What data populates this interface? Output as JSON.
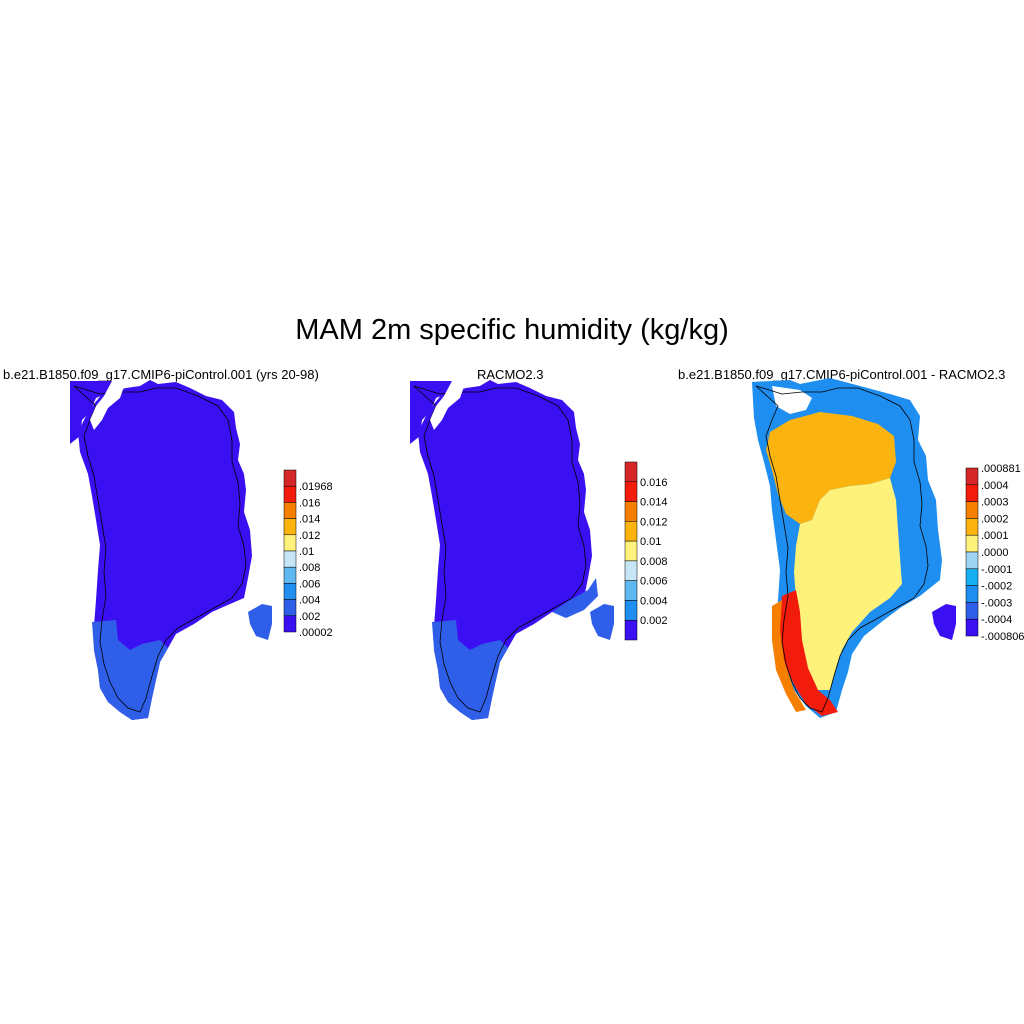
{
  "title": "MAM 2m specific humidity (kg/kg)",
  "panels": [
    {
      "title": "b.e21.B1850.f09_g17.CMIP6-piControl.001 (yrs 20-98)",
      "colorbar": {
        "labels": [
          ".01968",
          ".016",
          ".014",
          ".012",
          ".01",
          ".008",
          ".006",
          ".004",
          ".002",
          ".00002"
        ],
        "colors": [
          "#d62728",
          "#f21b0c",
          "#f77f00",
          "#fbb40f",
          "#fff27a",
          "#c6e6f7",
          "#5fb8ef",
          "#1e8ef0",
          "#2f5ee8",
          "#3a10f2"
        ]
      },
      "dominant_fill": "#3a10f2",
      "coastal_fill": "#2f5ee8"
    },
    {
      "title": "RACMO2.3",
      "colorbar": {
        "labels": [
          "0.016",
          "0.014",
          "0.012",
          "0.01",
          "0.008",
          "0.006",
          "0.004",
          "0.002"
        ],
        "colors": [
          "#d62728",
          "#f21b0c",
          "#f77f00",
          "#fbb40f",
          "#fff27a",
          "#c6e6f7",
          "#5fb8ef",
          "#1e8ef0",
          "#3a10f2"
        ]
      },
      "dominant_fill": "#3a10f2",
      "coastal_fill": "#2f5ee8"
    },
    {
      "title": "b.e21.B1850.f09_g17.CMIP6-piControl.001 - RACMO2.3",
      "colorbar": {
        "labels": [
          ".000881",
          ".0004",
          ".0003",
          ".0002",
          ".0001",
          ".0000",
          "-.0001",
          "-.0002",
          "-.0003",
          "-.0004",
          "-.000806"
        ],
        "colors": [
          "#d62728",
          "#f21b0c",
          "#f77f00",
          "#fbb40f",
          "#fff27a",
          "#9fd3f2",
          "#18aef2",
          "#1e8ef0",
          "#2f5ee8",
          "#3a10f2"
        ]
      },
      "interior_fill": "#fff27a",
      "north_fill": "#fbb40f",
      "west_fill": "#f21b0c",
      "coastal_fill": "#1e8ef0"
    }
  ]
}
